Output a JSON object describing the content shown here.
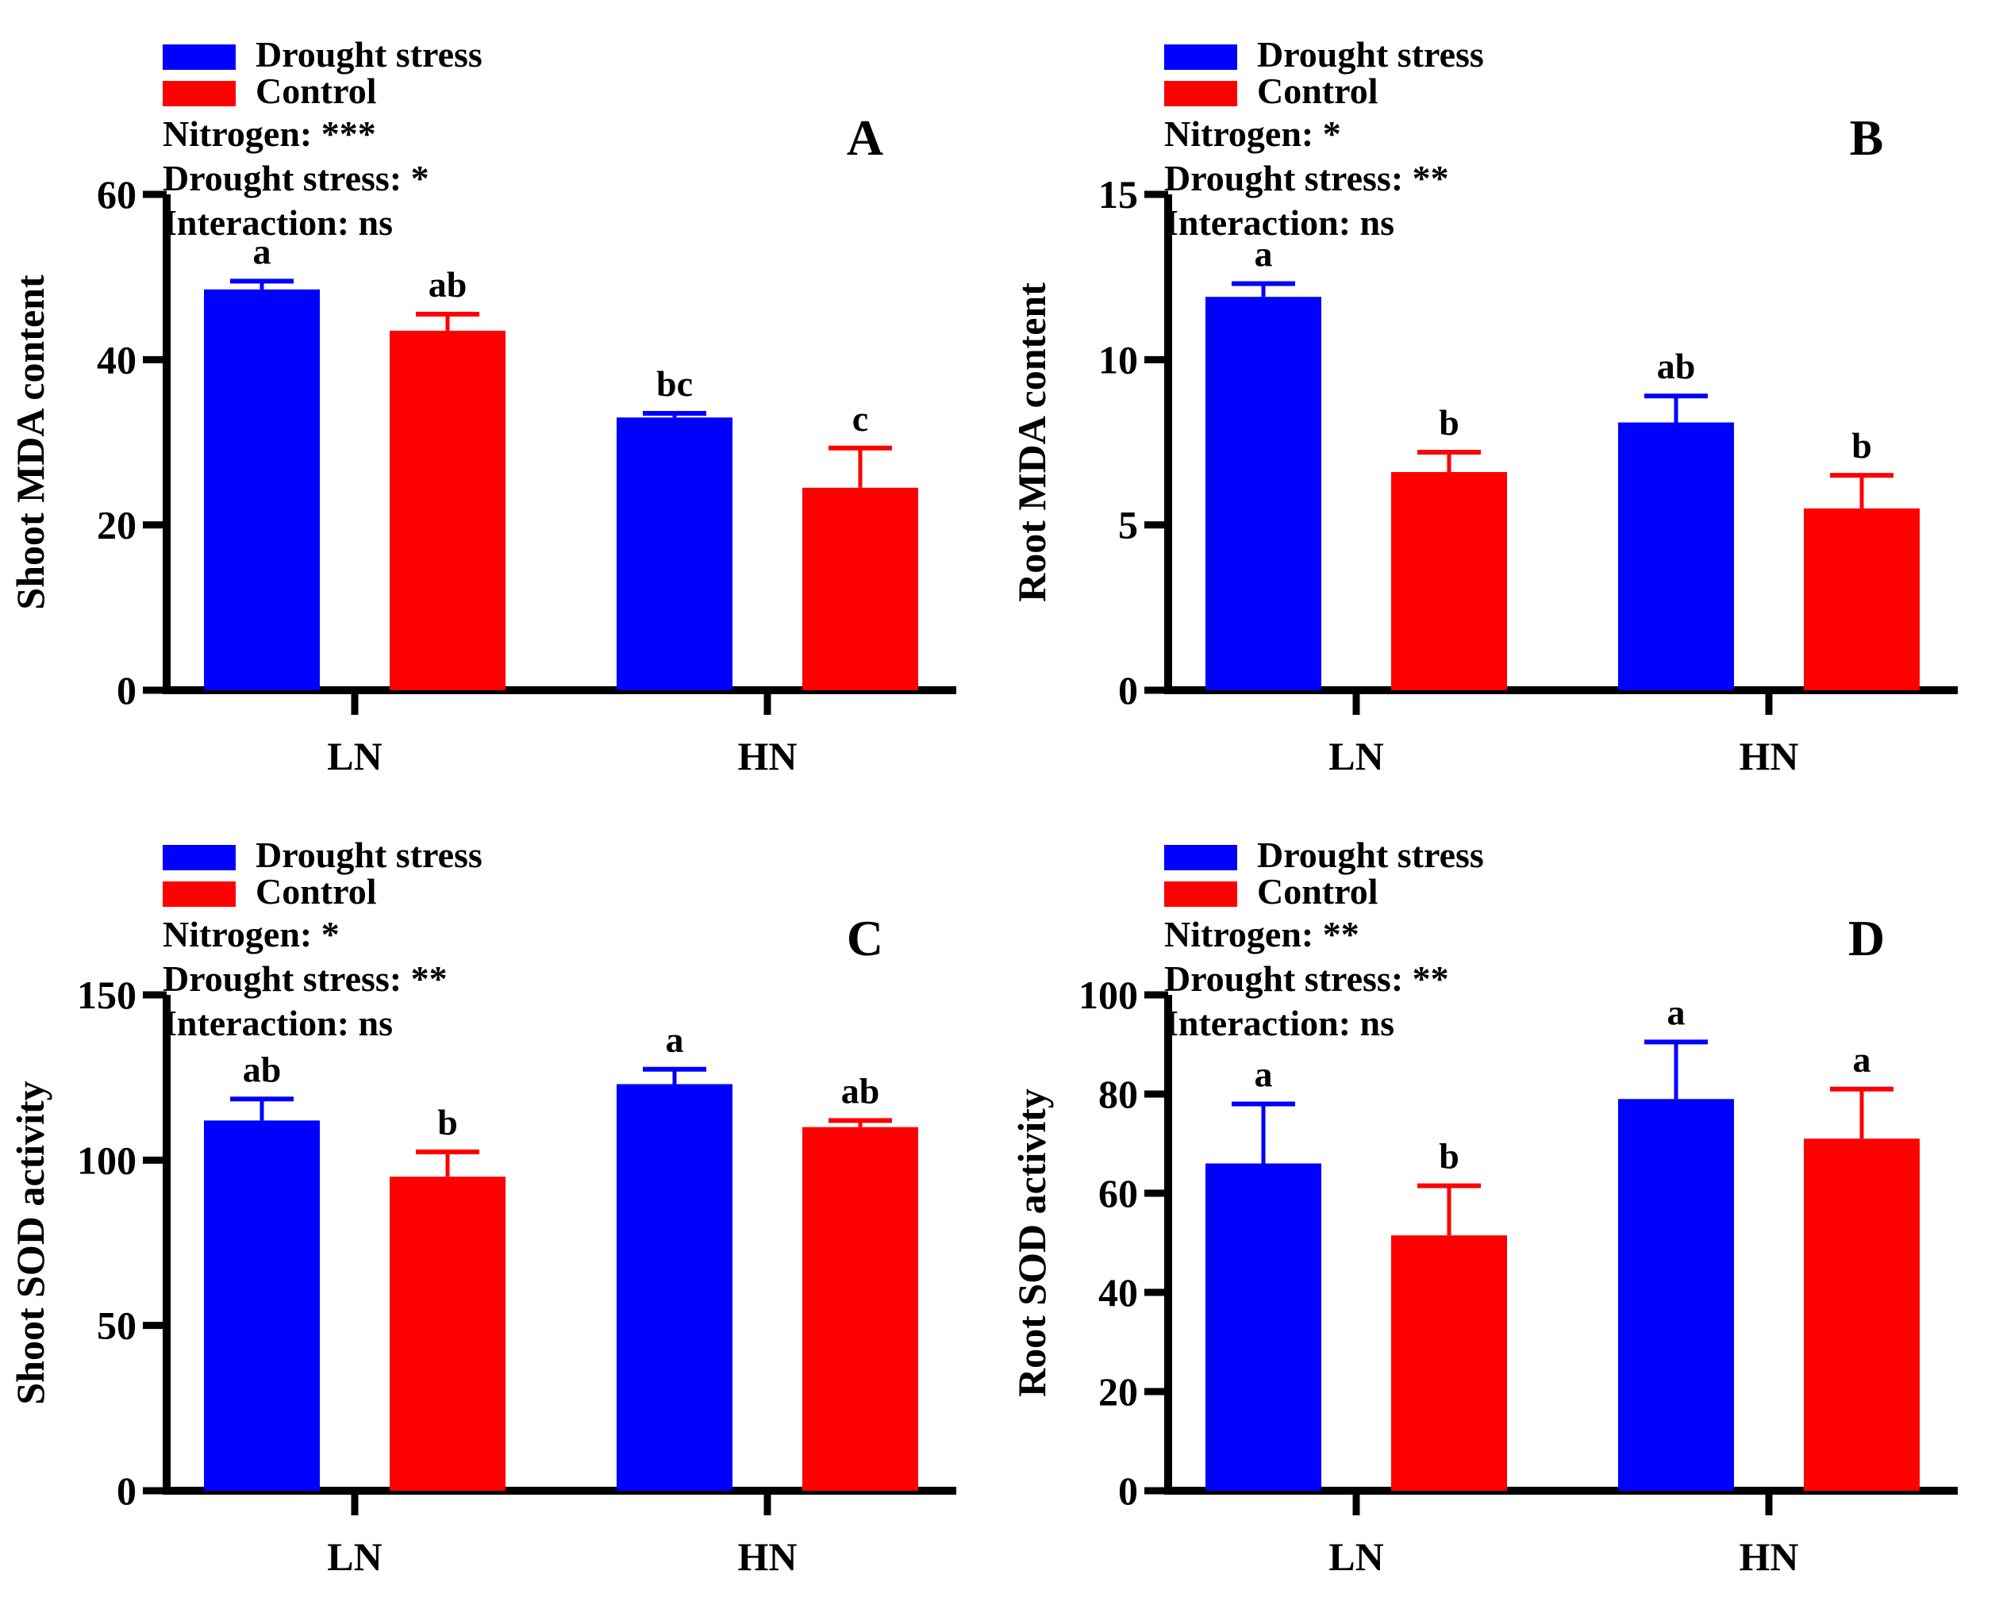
{
  "figure": {
    "background": "#ffffff",
    "categories": [
      "LN",
      "HN"
    ],
    "legend": {
      "items": [
        {
          "label": "Drought stress",
          "color": "#0000FF"
        },
        {
          "label": "Control",
          "color": "#FF0000"
        }
      ]
    }
  },
  "colors": {
    "drought_stress": "#0000FF",
    "control": "#FF0000",
    "axis": "#000000",
    "text": "#000000"
  },
  "chart_data": [
    {
      "type": "bar",
      "panel_letter": "A",
      "title": "",
      "xlabel": "",
      "ylabel": "Shoot MDA content",
      "ylim": [
        0,
        60
      ],
      "yticks": [
        0,
        20,
        40,
        60
      ],
      "categories": [
        "LN",
        "HN"
      ],
      "grid": false,
      "legend_position": "top-left",
      "legend": [
        "Drought stress",
        "Control"
      ],
      "annotations": [
        "Nitrogen: ***",
        "Drought stress: *",
        "Interaction: ns"
      ],
      "series": [
        {
          "name": "Drought stress",
          "color": "#0000FF",
          "values": [
            48.5,
            33.0
          ],
          "errors_plus": [
            1.0,
            0.5
          ],
          "sig_letters": [
            "a",
            "bc"
          ]
        },
        {
          "name": "Control",
          "color": "#FF0000",
          "values": [
            43.5,
            24.5
          ],
          "errors_plus": [
            2.0,
            4.8
          ],
          "sig_letters": [
            "ab",
            "c"
          ]
        }
      ]
    },
    {
      "type": "bar",
      "panel_letter": "B",
      "title": "",
      "xlabel": "",
      "ylabel": "Root MDA content",
      "ylim": [
        0,
        15
      ],
      "yticks": [
        0,
        5,
        10,
        15
      ],
      "categories": [
        "LN",
        "HN"
      ],
      "grid": false,
      "legend_position": "top-left",
      "legend": [
        "Drought stress",
        "Control"
      ],
      "annotations": [
        "Nitrogen: *",
        "Drought stress: **",
        "Interaction: ns"
      ],
      "series": [
        {
          "name": "Drought stress",
          "color": "#0000FF",
          "values": [
            11.9,
            8.1
          ],
          "errors_plus": [
            0.4,
            0.8
          ],
          "sig_letters": [
            "a",
            "ab"
          ]
        },
        {
          "name": "Control",
          "color": "#FF0000",
          "values": [
            6.6,
            5.5
          ],
          "errors_plus": [
            0.6,
            1.0
          ],
          "sig_letters": [
            "b",
            "b"
          ]
        }
      ]
    },
    {
      "type": "bar",
      "panel_letter": "C",
      "title": "",
      "xlabel": "",
      "ylabel": "Shoot SOD activity",
      "ylim": [
        0,
        150
      ],
      "yticks": [
        0,
        50,
        100,
        150
      ],
      "categories": [
        "LN",
        "HN"
      ],
      "grid": false,
      "legend_position": "top-left",
      "legend": [
        "Drought stress",
        "Control"
      ],
      "annotations": [
        "Nitrogen: *",
        "Drought stress: **",
        "Interaction: ns"
      ],
      "series": [
        {
          "name": "Drought stress",
          "color": "#0000FF",
          "values": [
            112,
            123
          ],
          "errors_plus": [
            6.5,
            4.5
          ],
          "sig_letters": [
            "ab",
            "a"
          ]
        },
        {
          "name": "Control",
          "color": "#FF0000",
          "values": [
            95,
            110
          ],
          "errors_plus": [
            7.5,
            2.0
          ],
          "sig_letters": [
            "b",
            "ab"
          ]
        }
      ]
    },
    {
      "type": "bar",
      "panel_letter": "D",
      "title": "",
      "xlabel": "",
      "ylabel": "Root SOD activity",
      "ylim": [
        0,
        100
      ],
      "yticks": [
        0,
        20,
        40,
        60,
        80,
        100
      ],
      "categories": [
        "LN",
        "HN"
      ],
      "grid": false,
      "legend_position": "top-left",
      "legend": [
        "Drought stress",
        "Control"
      ],
      "annotations": [
        "Nitrogen: **",
        "Drought stress: **",
        "Interaction: ns"
      ],
      "series": [
        {
          "name": "Drought stress",
          "color": "#0000FF",
          "values": [
            66,
            79
          ],
          "errors_plus": [
            12.0,
            11.5
          ],
          "sig_letters": [
            "a",
            "a"
          ]
        },
        {
          "name": "Control",
          "color": "#FF0000",
          "values": [
            51.5,
            71
          ],
          "errors_plus": [
            10.0,
            10.0
          ],
          "sig_letters": [
            "b",
            "a"
          ]
        }
      ]
    }
  ]
}
